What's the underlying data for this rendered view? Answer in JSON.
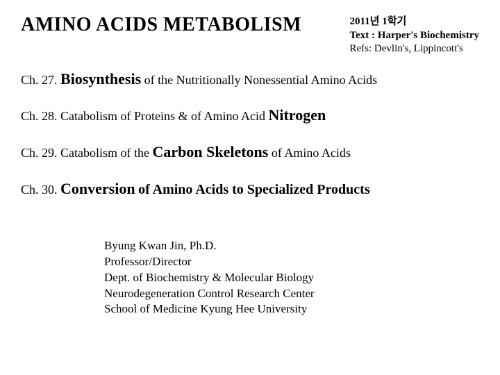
{
  "title": "AMINO ACIDS METABOLISM",
  "header": {
    "term": "2011년 1학기",
    "text_label": "Text : Harper's Biochemistry",
    "refs": "Refs: Devlin's, Lippincott's"
  },
  "chapters": {
    "ch27": {
      "prefix": "Ch. 27.",
      "highlight": "Biosynthesis",
      "rest": "of the Nutritionally Nonessential Amino Acids"
    },
    "ch28": {
      "prefix": "Ch. 28. Catabolism of Proteins & of Amino Acid",
      "highlight": "Nitrogen"
    },
    "ch29": {
      "prefix": "Ch. 29. Catabolism of the",
      "highlight": "Carbon Skeletons",
      "rest": "of Amino Acids"
    },
    "ch30": {
      "prefix": "Ch. 30.",
      "highlight": "Conversion",
      "rest": "of Amino Acids to Specialized Products"
    }
  },
  "footer": {
    "line1": "Byung Kwan Jin, Ph.D.",
    "line2": "Professor/Director",
    "line3": "Dept. of Biochemistry & Molecular Biology",
    "line4": "Neurodegeneration Control Research Center",
    "line5": "School of Medicine Kyung Hee University"
  }
}
